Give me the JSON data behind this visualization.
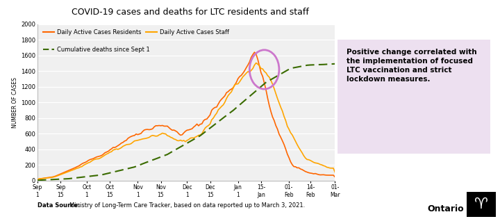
{
  "title": "COVID-19 cases and deaths for LTC residents and staff",
  "ylabel": "NUMBER OF CASES",
  "ylim": [
    0,
    2000
  ],
  "yticks": [
    0,
    200,
    400,
    600,
    800,
    1000,
    1200,
    1400,
    1600,
    1800,
    2000
  ],
  "xtick_labels": [
    "Sep\n1",
    "Sep\n15",
    "Oct\n1",
    "Oct\n15",
    "Nov\n1",
    "Nov\n15",
    "Dec\n1",
    "Dec\n15",
    "Jan\n1",
    "15-\nJan",
    "01-\nFeb",
    "14-\nFeb",
    "01-\nMar"
  ],
  "annotation_text": "Positive change correlated with\nthe implementation of focused\nLTC vaccination and strict\nlockdown measures.",
  "datasource_bold": "Data Source:",
  "datasource_text": "Ministry of Long-Term Care Tracker, based on data reported up to March 3, 2021.",
  "legend_residents": "Daily Active Cases Residents",
  "legend_staff": "Daily Active Cases Staff",
  "legend_deaths": "Cumulative deaths since Sept 1",
  "color_residents": "#FF6600",
  "color_staff": "#FFA500",
  "color_deaths": "#3A6B00",
  "annotation_box_color": "#EDE0F0",
  "circle_color": "#CC77CC",
  "background_color": "#FFFFFF",
  "plot_bg_color": "#F0F0F0"
}
